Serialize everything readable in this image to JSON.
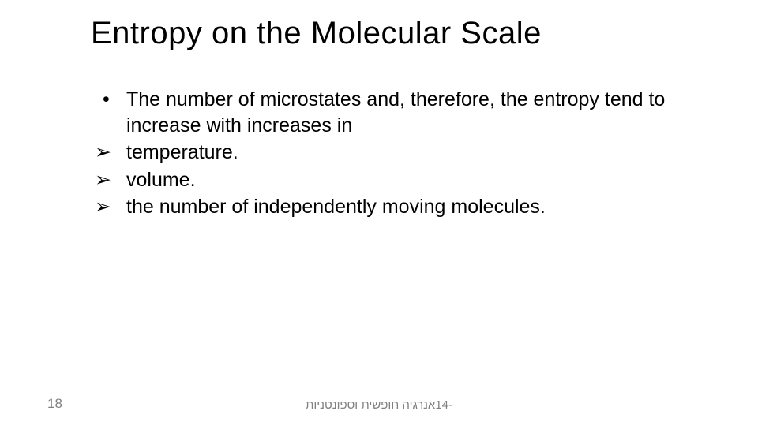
{
  "title": "Entropy on the Molecular Scale",
  "intro": "The number of microstates and, therefore, the entropy tend to increase with increases in",
  "items": {
    "a": "temperature.",
    "b": "volume.",
    "c": "the number of independently moving molecules."
  },
  "footer": {
    "page_number": "18",
    "caption": "-14אנרגיה חופשית וספונטניות"
  },
  "style": {
    "title_fontsize": 40,
    "body_fontsize": 25,
    "footer_fontsize_left": 17,
    "footer_fontsize_center": 15,
    "text_color": "#000000",
    "footer_color": "#808080",
    "background_color": "#ffffff"
  }
}
